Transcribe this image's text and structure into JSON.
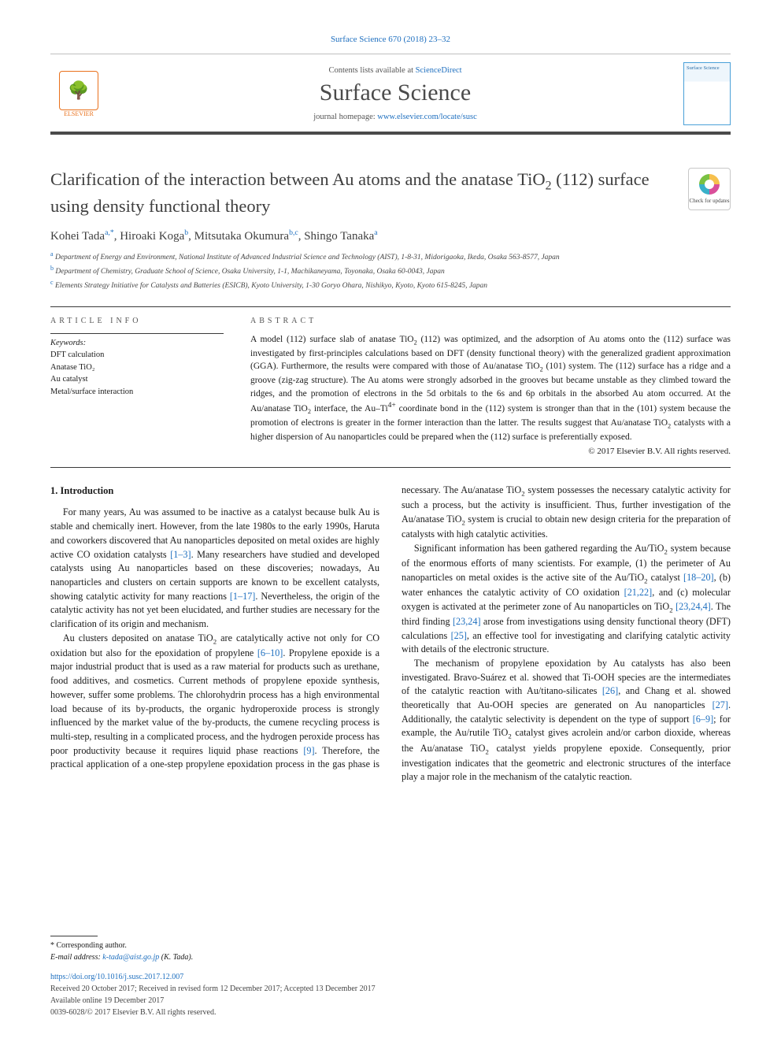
{
  "colors": {
    "link": "#1e6fbf",
    "accent_orange": "#e9711c",
    "text_gray": "#3e3e3e",
    "rule": "#3a3a3a"
  },
  "top_reference": "Surface Science 670 (2018) 23–32",
  "masthead": {
    "contents_line_pre": "Contents lists available at ",
    "contents_link": "ScienceDirect",
    "journal": "Surface Science",
    "homepage_pre": "journal homepage: ",
    "homepage_link": "www.elsevier.com/locate/susc",
    "publisher_label": "ELSEVIER",
    "cover_label": "Surface Science"
  },
  "updates_badge": "Check for updates",
  "title_html": "Clarification of the interaction between Au atoms and the anatase TiO<sub>2</sub> (112) surface using density functional theory",
  "authors_html": "Kohei Tada<sup>a,*</sup>, Hiroaki Koga<sup>b</sup>, Mitsutaka Okumura<sup>b,c</sup>, Shingo Tanaka<sup>a</sup>",
  "affiliations": [
    {
      "sup": "a",
      "text": "Department of Energy and Environment, National Institute of Advanced Industrial Science and Technology (AIST), 1-8-31, Midorigaoka, Ikeda, Osaka 563-8577, Japan"
    },
    {
      "sup": "b",
      "text": "Department of Chemistry, Graduate School of Science, Osaka University, 1-1, Machikaneyama, Toyonaka, Osaka 60-0043, Japan"
    },
    {
      "sup": "c",
      "text": "Elements Strategy Initiative for Catalysts and Batteries (ESICB), Kyoto University, 1-30 Goryo Ohara, Nishikyo, Kyoto, Kyoto 615-8245, Japan"
    }
  ],
  "article_info": {
    "head": "ARTICLE INFO",
    "keywords_label": "Keywords:",
    "keywords": [
      "DFT calculation",
      "Anatase TiO₂",
      "Au catalyst",
      "Metal/surface interaction"
    ]
  },
  "abstract": {
    "head": "ABSTRACT",
    "text_html": "A model (112) surface slab of anatase TiO<sub>2</sub> (112) was optimized, and the adsorption of Au atoms onto the (112) surface was investigated by first-principles calculations based on DFT (density functional theory) with the generalized gradient approximation (GGA). Furthermore, the results were compared with those of Au/anatase TiO<sub>2</sub> (101) system. The (112) surface has a ridge and a groove (zig-zag structure). The Au atoms were strongly adsorbed in the grooves but became unstable as they climbed toward the ridges, and the promotion of electrons in the 5d orbitals to the 6s and 6p orbitals in the absorbed Au atom occurred. At the Au/anatase TiO<sub>2</sub> interface, the Au–Ti<sup>4+</sup> coordinate bond in the (112) system is stronger than that in the (101) system because the promotion of electrons is greater in the former interaction than the latter. The results suggest that Au/anatase TiO<sub>2</sub> catalysts with a higher dispersion of Au nanoparticles could be prepared when the (112) surface is preferentially exposed.",
    "copyright": "© 2017 Elsevier B.V. All rights reserved."
  },
  "section_heading": "1. Introduction",
  "paragraphs_html": [
    "For many years, Au was assumed to be inactive as a catalyst because bulk Au is stable and chemically inert. However, from the late 1980s to the early 1990s, Haruta and coworkers discovered that Au nanoparticles deposited on metal oxides are highly active CO oxidation catalysts <span class=\"cite\">[1–3]</span>. Many researchers have studied and developed catalysts using Au nanoparticles based on these discoveries; nowadays, Au nanoparticles and clusters on certain supports are known to be excellent catalysts, showing catalytic activity for many reactions <span class=\"cite\">[1–17]</span>. Nevertheless, the origin of the catalytic activity has not yet been elucidated, and further studies are necessary for the clarification of its origin and mechanism.",
    "Au clusters deposited on anatase TiO<sub>2</sub> are catalytically active not only for CO oxidation but also for the epoxidation of propylene <span class=\"cite\">[6–10]</span>. Propylene epoxide is a major industrial product that is used as a raw material for products such as urethane, food additives, and cosmetics. Current methods of propylene epoxide synthesis, however, suffer some problems. The chlorohydrin process has a high environmental load because of its by-products, the organic hydroperoxide process is strongly influenced by the market value of the by-products, the cumene recycling process is multi-step, resulting in a complicated process, and the hydrogen peroxide process has poor productivity because it requires liquid phase reactions <span class=\"cite\">[9]</span>. Therefore, the practical application of a one-step propylene epoxidation process in the gas phase is necessary. The Au/anatase TiO<sub>2</sub> system possesses the necessary catalytic activity for such a process, but the activity is insufficient. Thus, further investigation of the Au/anatase TiO<sub>2</sub> system is crucial to obtain new design criteria for the preparation of catalysts with high catalytic activities.",
    "Significant information has been gathered regarding the Au/TiO<sub>2</sub> system because of the enormous efforts of many scientists. For example, (1) the perimeter of Au nanoparticles on metal oxides is the active site of the Au/TiO<sub>2</sub> catalyst <span class=\"cite\">[18–20]</span>, (b) water enhances the catalytic activity of CO oxidation <span class=\"cite\">[21,22]</span>, and (c) molecular oxygen is activated at the perimeter zone of Au nanoparticles on TiO<sub>2</sub> <span class=\"cite\">[23,24,4]</span>. The third finding <span class=\"cite\">[23,24]</span> arose from investigations using density functional theory (DFT) calculations <span class=\"cite\">[25]</span>, an effective tool for investigating and clarifying catalytic activity with details of the electronic structure.",
    "The mechanism of propylene epoxidation by Au catalysts has also been investigated. Bravo-Suárez et al. showed that Ti-OOH species are the intermediates of the catalytic reaction with Au/titano-silicates <span class=\"cite\">[26]</span>, and Chang et al. showed theoretically that Au-OOH species are generated on Au nanoparticles <span class=\"cite\">[27]</span>. Additionally, the catalytic selectivity is dependent on the type of support <span class=\"cite\">[6–9]</span>; for example, the Au/rutile TiO<sub>2</sub> catalyst gives acrolein and/or carbon dioxide, whereas the Au/anatase TiO<sub>2</sub> catalyst yields propylene epoxide. Consequently, prior investigation indicates that the geometric and electronic structures of the interface play a major role in the mechanism of the catalytic reaction."
  ],
  "footer": {
    "corr_label": "* Corresponding author.",
    "email_label": "E-mail address: ",
    "email": "k-tada@aist.go.jp",
    "email_tail": " (K. Tada).",
    "doi": "https://doi.org/10.1016/j.susc.2017.12.007",
    "history": "Received 20 October 2017; Received in revised form 12 December 2017; Accepted 13 December 2017",
    "online": "Available online 19 December 2017",
    "issn_copy": "0039-6028/© 2017 Elsevier B.V. All rights reserved."
  }
}
